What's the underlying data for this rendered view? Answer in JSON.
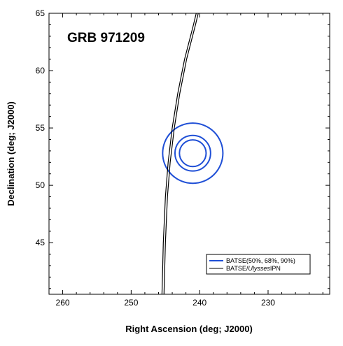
{
  "chart_data": {
    "type": "line",
    "title": "GRB 971209",
    "xlabel": "Right Ascension (deg; J2000)",
    "ylabel": "Declination (deg; J2000)",
    "xlim": [
      262,
      221
    ],
    "ylim": [
      40.5,
      65
    ],
    "x_reversed": true,
    "x_ticks": [
      260,
      250,
      240,
      230
    ],
    "y_ticks": [
      45,
      50,
      55,
      60,
      65
    ],
    "grid": false,
    "legend_position": "bottom-right",
    "error_circles": {
      "name": "BATSE(50%, 68%, 90%)",
      "color": "#1f4fd6",
      "center": {
        "ra": 241,
        "dec": 52.8
      },
      "radii_deg": [
        1.95,
        2.6,
        4.4
      ]
    },
    "ipn_annulus": {
      "name": "BATSE/Ulysses IPN",
      "color": "#000000",
      "edges": [
        {
          "points": [
            [
              245.5,
              40.5
            ],
            [
              245.3,
              45
            ],
            [
              245.0,
              49
            ],
            [
              244.6,
              52
            ],
            [
              244.0,
              55
            ],
            [
              243.2,
              58
            ],
            [
              242.2,
              61
            ],
            [
              240.9,
              64
            ],
            [
              240.5,
              65
            ]
          ]
        },
        {
          "points": [
            [
              245.2,
              40.5
            ],
            [
              245.0,
              45
            ],
            [
              244.7,
              49
            ],
            [
              244.3,
              52
            ],
            [
              243.7,
              55
            ],
            [
              242.9,
              58
            ],
            [
              241.9,
              61
            ],
            [
              240.6,
              64
            ],
            [
              240.2,
              65
            ]
          ]
        }
      ]
    },
    "legend": [
      {
        "label_prefix": "BATSE(50%, 68%, 90%)",
        "label_italic": "",
        "label_suffix": "",
        "color": "#1f4fd6",
        "width": 2
      },
      {
        "label_prefix": "BATSE/",
        "label_italic": "Ulysses",
        "label_suffix": "IPN",
        "color": "#000000",
        "width": 1
      }
    ]
  }
}
